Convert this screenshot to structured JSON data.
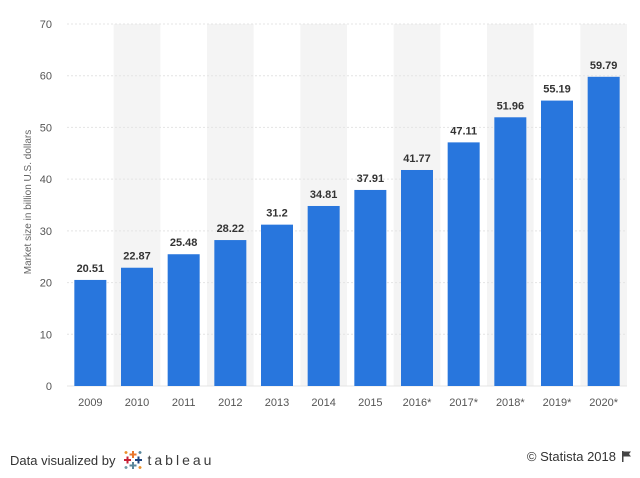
{
  "chart_data": {
    "type": "bar",
    "categories": [
      "2009",
      "2010",
      "2011",
      "2012",
      "2013",
      "2014",
      "2015",
      "2016*",
      "2017*",
      "2018*",
      "2019*",
      "2020*"
    ],
    "values": [
      20.51,
      22.87,
      25.48,
      28.22,
      31.2,
      34.81,
      37.91,
      41.77,
      47.11,
      51.96,
      55.19,
      59.79
    ],
    "value_labels": [
      "20.51",
      "22.87",
      "25.48",
      "28.22",
      "31.2",
      "34.81",
      "37.91",
      "41.77",
      "47.11",
      "51.96",
      "55.19",
      "59.79"
    ],
    "ylabel": "Market size in billion U.S. dollars",
    "ylim": [
      0,
      70
    ],
    "yticks": [
      "0",
      "10",
      "20",
      "30",
      "40",
      "50",
      "60",
      "70"
    ],
    "grid": true,
    "bar_color": "#2876dd",
    "alt_band_color": "#f4f4f4"
  },
  "footer": {
    "left_text": "Data visualized by",
    "brand": "tableau",
    "copyright": "© Statista 2018"
  }
}
